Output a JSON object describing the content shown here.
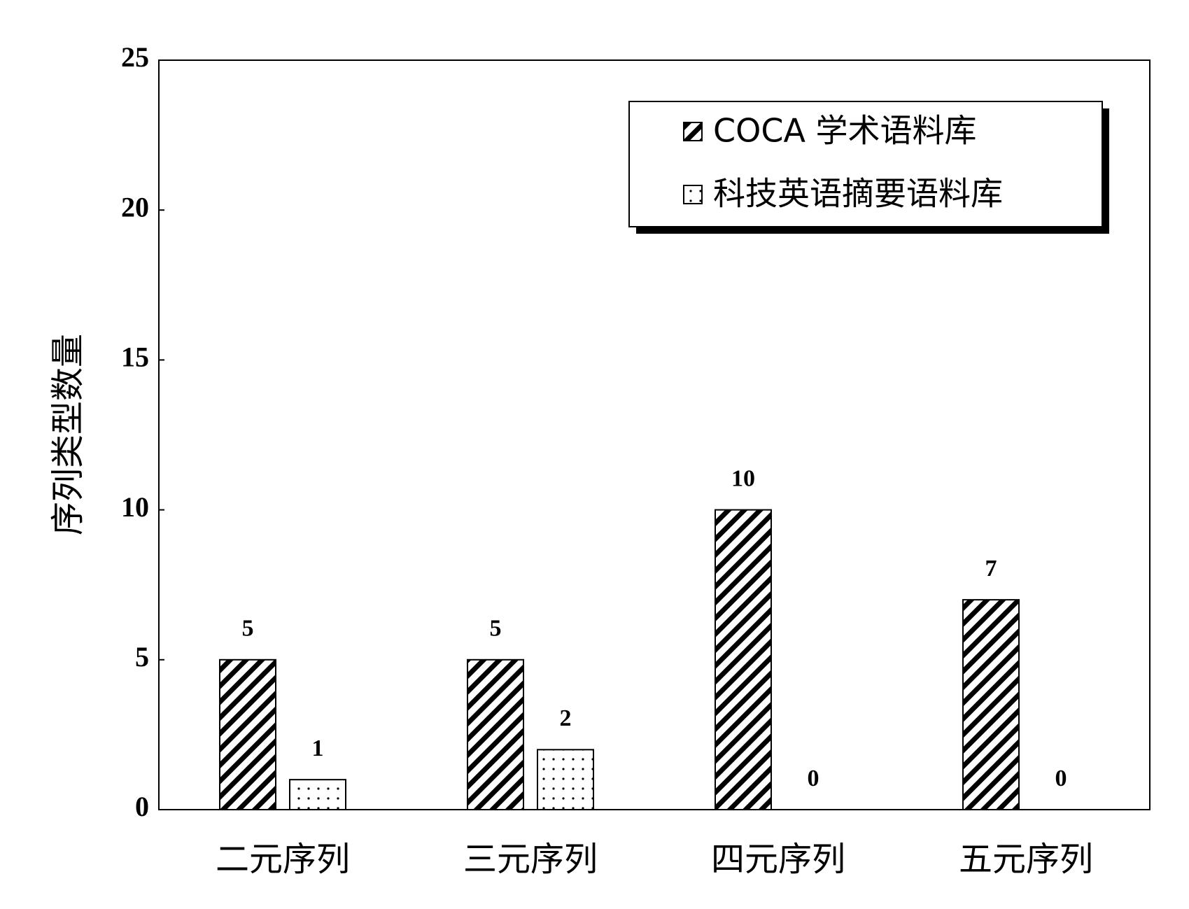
{
  "chart_data": {
    "type": "bar",
    "y_label": "序列类型数量",
    "categories": [
      "二元序列",
      "三元序列",
      "四元序列",
      "五元序列"
    ],
    "series": [
      {
        "name": "COCA 学术语料库",
        "color": "#000000",
        "pattern": "hatch",
        "values": [
          5,
          5,
          10,
          7
        ]
      },
      {
        "name": "科技英语摘要语料库",
        "color": "#000000",
        "pattern": "dots",
        "values": [
          1,
          2,
          0,
          0
        ]
      }
    ],
    "ylim": [
      0,
      25
    ],
    "yticks": [
      0,
      5,
      10,
      15,
      20,
      25
    ],
    "legend": "upper right"
  }
}
